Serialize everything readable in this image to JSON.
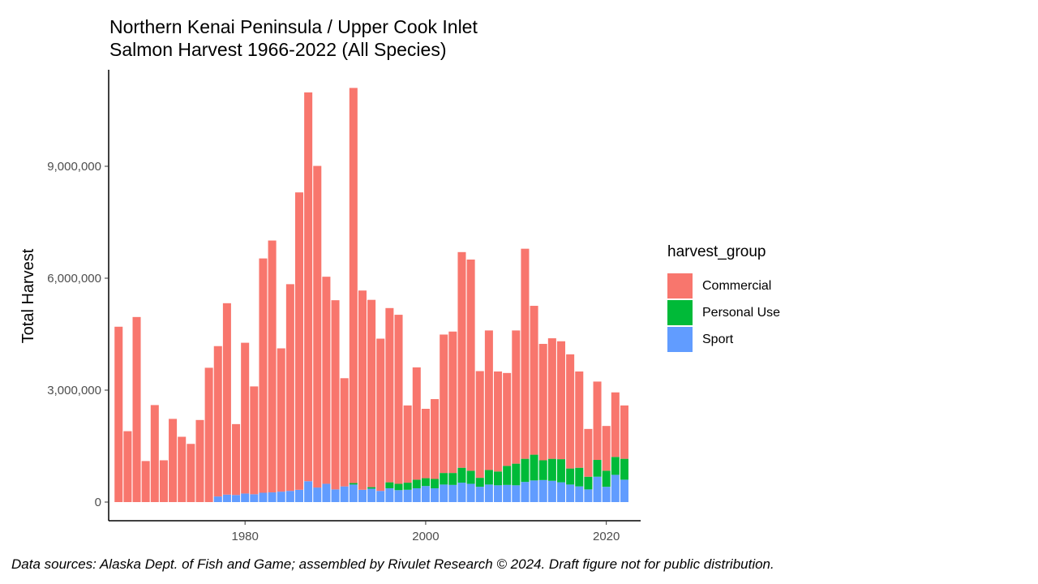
{
  "chart_data": {
    "type": "bar",
    "stacked": true,
    "title": "Northern Kenai Peninsula / Upper Cook Inlet",
    "subtitle": "Salmon Harvest 1966-2022 (All Species)",
    "xlabel": "",
    "ylabel": "Total Harvest",
    "xlim": [
      1964.9,
      2023.8
    ],
    "ylim": [
      0,
      11500000
    ],
    "x_ticks": [
      1980,
      2000,
      2020
    ],
    "y_ticks": [
      0,
      3000000,
      6000000,
      9000000
    ],
    "y_tick_labels": [
      "0",
      "3,000,000",
      "6,000,000",
      "9,000,000"
    ],
    "legend_title": "harvest_group",
    "legend_position": "right",
    "grid": false,
    "x": [
      1966,
      1967,
      1968,
      1969,
      1970,
      1971,
      1972,
      1973,
      1974,
      1975,
      1976,
      1977,
      1978,
      1979,
      1980,
      1981,
      1982,
      1983,
      1984,
      1985,
      1986,
      1987,
      1988,
      1989,
      1990,
      1991,
      1992,
      1993,
      1994,
      1995,
      1996,
      1997,
      1998,
      1999,
      2000,
      2001,
      2002,
      2003,
      2004,
      2005,
      2006,
      2007,
      2008,
      2009,
      2010,
      2011,
      2012,
      2013,
      2014,
      2015,
      2016,
      2017,
      2018,
      2019,
      2020,
      2021,
      2022
    ],
    "series": [
      {
        "name": "Sport",
        "color": "#619CFF",
        "values": [
          0,
          0,
          0,
          0,
          0,
          0,
          0,
          0,
          0,
          0,
          0,
          150000,
          200000,
          190000,
          230000,
          210000,
          250000,
          260000,
          280000,
          300000,
          330000,
          560000,
          390000,
          490000,
          340000,
          420000,
          470000,
          330000,
          360000,
          300000,
          370000,
          320000,
          330000,
          370000,
          430000,
          370000,
          470000,
          460000,
          520000,
          490000,
          410000,
          470000,
          450000,
          460000,
          450000,
          540000,
          580000,
          590000,
          570000,
          530000,
          470000,
          420000,
          340000,
          680000,
          410000,
          730000,
          600000
        ]
      },
      {
        "name": "Personal Use",
        "color": "#00BA38",
        "values": [
          0,
          0,
          0,
          0,
          0,
          0,
          0,
          0,
          0,
          0,
          0,
          0,
          0,
          0,
          0,
          0,
          0,
          0,
          0,
          0,
          0,
          0,
          0,
          0,
          0,
          0,
          40000,
          0,
          40000,
          0,
          160000,
          170000,
          190000,
          230000,
          210000,
          250000,
          310000,
          320000,
          400000,
          350000,
          240000,
          390000,
          370000,
          510000,
          580000,
          620000,
          690000,
          530000,
          590000,
          620000,
          430000,
          500000,
          340000,
          450000,
          430000,
          480000,
          560000
        ]
      },
      {
        "name": "Commercial",
        "color": "#F8766D",
        "values": [
          4700000,
          1900000,
          4960000,
          1100000,
          2600000,
          1120000,
          2230000,
          1750000,
          1560000,
          2200000,
          3600000,
          4030000,
          5130000,
          1900000,
          4040000,
          2890000,
          6280000,
          6750000,
          3840000,
          5540000,
          7970000,
          10420000,
          8620000,
          5550000,
          5070000,
          2900000,
          10590000,
          5340000,
          5020000,
          4080000,
          4670000,
          4530000,
          2070000,
          3010000,
          1860000,
          2140000,
          3710000,
          3790000,
          5780000,
          5660000,
          2860000,
          3740000,
          2680000,
          2490000,
          3570000,
          5630000,
          3990000,
          3120000,
          3230000,
          3160000,
          3060000,
          2580000,
          1280000,
          2100000,
          1200000,
          1730000,
          1430000
        ]
      }
    ]
  },
  "caption": "Data sources: Alaska Dept. of Fish and Game; assembled by Rivulet Research © 2024. Draft figure not for public distribution."
}
